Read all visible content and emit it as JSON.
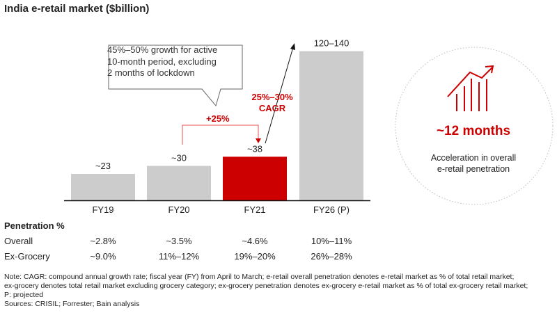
{
  "title": "India e-retail market ($billion)",
  "chart_data": {
    "type": "bar",
    "categories": [
      "FY19",
      "FY20",
      "FY21",
      "FY26 (P)"
    ],
    "values": [
      23,
      30,
      38,
      130
    ],
    "data_labels": [
      "~23",
      "~30",
      "~38",
      "120–140"
    ],
    "colors": [
      "#cccccc",
      "#cccccc",
      "#cc0000",
      "#cccccc"
    ],
    "ylim": [
      0,
      137
    ],
    "annotations": {
      "callout": [
        "45%–50% growth for active",
        "10-month period, excluding",
        "2 months of lockdown"
      ],
      "growth": "+25%",
      "cagr": [
        "25%–30%",
        "CAGR"
      ]
    }
  },
  "penetration": {
    "heading": "Penetration %",
    "rows": [
      {
        "label": "Overall",
        "values": [
          "~2.8%",
          "~3.5%",
          "~4.6%",
          "10%–11%"
        ]
      },
      {
        "label": "Ex-Grocery",
        "values": [
          "~9.0%",
          "11%–12%",
          "19%–20%",
          "26%–28%"
        ]
      }
    ]
  },
  "highlight": {
    "icon": "growth-chart-icon",
    "value": "~12 months",
    "text": [
      "Acceleration in overall",
      "e-retail penetration"
    ],
    "color": "#cc0000"
  },
  "notes": [
    "Note: CAGR: compound annual growth rate; fiscal year (FY) from April to March; e-retail overall penetration denotes e-retail market as % of total retail market;",
    "ex-grocery denotes total retail market excluding grocery category; ex-grocery penetration denotes ex-grocery e-retail market as % of total ex-grocery retail market;",
    "P: projected",
    "Sources: CRISIL; Forrester; Bain analysis"
  ]
}
